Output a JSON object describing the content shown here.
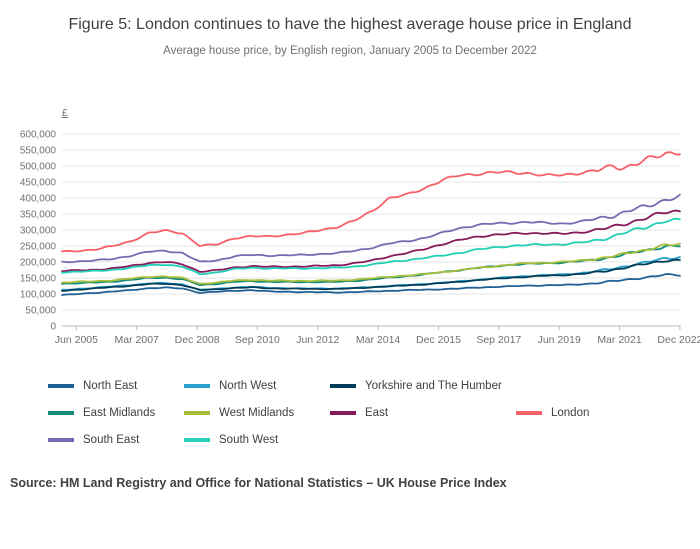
{
  "figure": {
    "title": "Figure 5: London continues to have the highest average house price in England",
    "subtitle": "Average house price, by English region, January 2005 to December 2022",
    "unit_label": "£",
    "source": "Source: HM Land Registry and Office for National Statistics – UK House Price Index"
  },
  "chart_data": {
    "type": "line",
    "title": "Figure 5: London continues to have the highest average house price in England",
    "subtitle": "Average house price, by English region, January 2005 to December 2022",
    "ylabel": "£",
    "ylim": [
      0,
      600000
    ],
    "y_tick_step": 50000,
    "xlim": [
      2005.0,
      2022.95
    ],
    "x_tick_labels": [
      "Jun 2005",
      "Mar 2007",
      "Dec 2008",
      "Sep 2010",
      "Jun 2012",
      "Mar 2014",
      "Dec 2015",
      "Sep 2017",
      "Jun 2019",
      "Mar 2021",
      "Dec 2022"
    ],
    "x_tick_positions": [
      2005.417,
      2007.167,
      2008.917,
      2010.667,
      2012.417,
      2014.167,
      2015.917,
      2017.667,
      2019.417,
      2021.167,
      2022.917
    ],
    "grid": "horizontal",
    "legend_position": "bottom",
    "x": [
      2005,
      2005.5,
      2006,
      2006.5,
      2007,
      2007.5,
      2008,
      2008.5,
      2009,
      2009.5,
      2010,
      2010.5,
      2011,
      2012,
      2013,
      2013.5,
      2014,
      2014.5,
      2015,
      2015.5,
      2016,
      2016.5,
      2017,
      2017.5,
      2018,
      2018.5,
      2019,
      2019.5,
      2020,
      2020.5,
      2021,
      2021.3,
      2021.6,
      2022,
      2022.5,
      2022.92
    ],
    "series": [
      {
        "name": "North East",
        "color": "#206095",
        "values": [
          97000,
          100000,
          104000,
          108000,
          112000,
          118000,
          120000,
          117000,
          104000,
          107000,
          110000,
          112000,
          108000,
          106000,
          105000,
          106000,
          108000,
          110000,
          112000,
          113000,
          115000,
          117000,
          120000,
          122000,
          124000,
          126000,
          127000,
          128000,
          130000,
          134000,
          140000,
          144000,
          148000,
          152000,
          160000,
          160000
        ]
      },
      {
        "name": "North West",
        "color": "#27a0cc",
        "values": [
          112000,
          116000,
          120000,
          124000,
          128000,
          133000,
          134000,
          130000,
          113000,
          116000,
          120000,
          122000,
          119000,
          117000,
          117000,
          119000,
          122000,
          125000,
          128000,
          131000,
          135000,
          139000,
          144000,
          148000,
          153000,
          156000,
          159000,
          161000,
          165000,
          171000,
          180000,
          186000,
          192000,
          200000,
          212000,
          215000
        ]
      },
      {
        "name": "Yorkshire and The Humber",
        "color": "#003c57",
        "values": [
          110000,
          114000,
          118000,
          122000,
          126000,
          131000,
          132000,
          128000,
          112000,
          115000,
          119000,
          121000,
          118000,
          116000,
          116000,
          118000,
          121000,
          124000,
          127000,
          130000,
          134000,
          138000,
          143000,
          147000,
          151000,
          154000,
          157000,
          159000,
          162000,
          168000,
          176000,
          182000,
          188000,
          195000,
          205000,
          205000
        ]
      },
      {
        "name": "East Midlands",
        "color": "#118c7b",
        "values": [
          132000,
          134000,
          136000,
          139000,
          144000,
          150000,
          151000,
          146000,
          128000,
          132000,
          138000,
          140000,
          138000,
          137000,
          138000,
          141000,
          146000,
          151000,
          156000,
          161000,
          168000,
          174000,
          181000,
          186000,
          191000,
          194000,
          196000,
          198000,
          202000,
          208000,
          216000,
          223000,
          230000,
          238000,
          248000,
          250000
        ]
      },
      {
        "name": "West Midlands",
        "color": "#a8bd3a",
        "values": [
          136000,
          138000,
          140000,
          143000,
          148000,
          154000,
          155000,
          150000,
          132000,
          136000,
          142000,
          144000,
          142000,
          141000,
          142000,
          145000,
          149000,
          154000,
          158000,
          162000,
          168000,
          174000,
          181000,
          186000,
          192000,
          196000,
          198000,
          200000,
          204000,
          210000,
          218000,
          225000,
          232000,
          240000,
          252000,
          255000
        ]
      },
      {
        "name": "East",
        "color": "#871a5b",
        "values": [
          172000,
          174000,
          176000,
          180000,
          188000,
          197000,
          200000,
          193000,
          170000,
          174000,
          183000,
          187000,
          185000,
          186000,
          190000,
          196000,
          205000,
          218000,
          228000,
          240000,
          255000,
          268000,
          278000,
          285000,
          288000,
          290000,
          290000,
          288000,
          292000,
          300000,
          310000,
          318000,
          328000,
          340000,
          355000,
          360000
        ]
      },
      {
        "name": "London",
        "color": "#f66068",
        "values": [
          232000,
          235000,
          240000,
          250000,
          265000,
          290000,
          298000,
          290000,
          250000,
          255000,
          275000,
          280000,
          280000,
          290000,
          310000,
          330000,
          360000,
          400000,
          410000,
          430000,
          455000,
          470000,
          475000,
          480000,
          480000,
          478000,
          470000,
          472000,
          478000,
          485000,
          500000,
          495000,
          505000,
          520000,
          540000,
          545000
        ]
      },
      {
        "name": "South East",
        "color": "#746cb1",
        "values": [
          200000,
          202000,
          205000,
          210000,
          220000,
          232000,
          235000,
          228000,
          200000,
          205000,
          218000,
          222000,
          220000,
          222000,
          228000,
          235000,
          245000,
          258000,
          265000,
          275000,
          290000,
          305000,
          315000,
          320000,
          322000,
          325000,
          322000,
          320000,
          325000,
          335000,
          345000,
          355000,
          365000,
          375000,
          395000,
          405000
        ]
      },
      {
        "name": "South West",
        "color": "#22d0b6",
        "values": [
          168000,
          170000,
          172000,
          176000,
          182000,
          190000,
          192000,
          185000,
          162000,
          168000,
          178000,
          182000,
          180000,
          180000,
          182000,
          186000,
          192000,
          200000,
          206000,
          212000,
          220000,
          228000,
          238000,
          245000,
          250000,
          253000,
          255000,
          255000,
          260000,
          268000,
          280000,
          290000,
          300000,
          312000,
          328000,
          330000
        ]
      }
    ]
  }
}
